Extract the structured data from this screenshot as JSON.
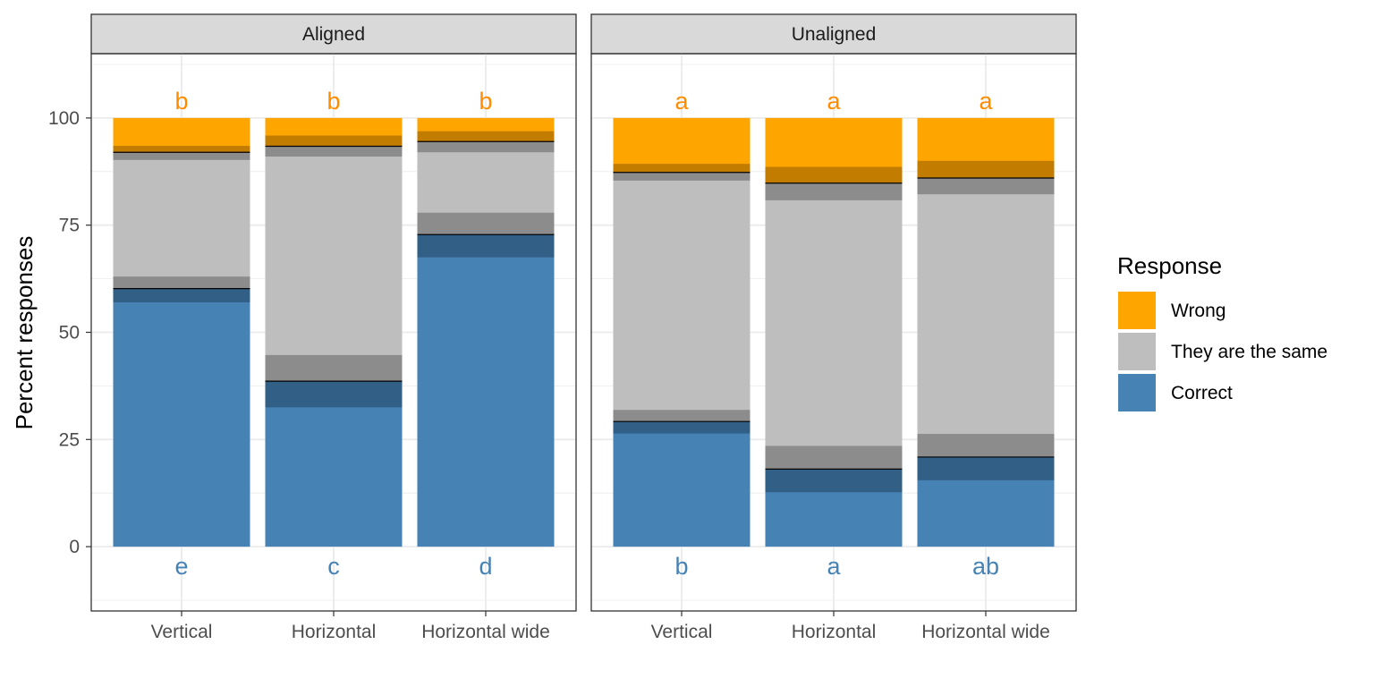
{
  "chart_data": {
    "type": "bar",
    "stacked": true,
    "ylabel": "Percent responses",
    "ylim": [
      -15,
      115
    ],
    "yticks": [
      0,
      25,
      50,
      75,
      100
    ],
    "categories": [
      "Vertical",
      "Horizontal",
      "Horizontal wide"
    ],
    "legend": {
      "title": "Response",
      "position": "right",
      "items": [
        {
          "label": "Wrong",
          "color": "#FFA500"
        },
        {
          "label": "They are the same",
          "color": "#BEBEBE"
        },
        {
          "label": "Correct",
          "color": "#4682B4"
        }
      ]
    },
    "colors": {
      "correct": "#4682B4",
      "correct_ci": "#325F86",
      "same": "#BEBEBE",
      "same_ci": "#8C8C8C",
      "wrong": "#FFA500",
      "wrong_ci": "#C27D00",
      "top_letter": "#FF8C00",
      "bottom_letter": "#4682B4"
    },
    "panels": [
      {
        "name": "Aligned",
        "bars": [
          {
            "category": "Vertical",
            "correct": 60.2,
            "same": 31.8,
            "wrong": 8.0,
            "correct_band": [
              57.0,
              63.0
            ],
            "same_band": [
              90.2,
              93.5
            ],
            "top_letter": "b",
            "bottom_letter": "e"
          },
          {
            "category": "Horizontal",
            "correct": 38.6,
            "same": 54.8,
            "wrong": 6.6,
            "correct_band": [
              32.5,
              44.7
            ],
            "same_band": [
              91.0,
              95.9
            ],
            "top_letter": "b",
            "bottom_letter": "c"
          },
          {
            "category": "Horizontal wide",
            "correct": 72.8,
            "same": 21.7,
            "wrong": 5.5,
            "correct_band": [
              67.5,
              77.9
            ],
            "same_band": [
              92.0,
              96.9
            ],
            "top_letter": "b",
            "bottom_letter": "d"
          }
        ]
      },
      {
        "name": "Unaligned",
        "bars": [
          {
            "category": "Vertical",
            "correct": 29.2,
            "same": 58.1,
            "wrong": 12.7,
            "correct_band": [
              26.4,
              31.9
            ],
            "same_band": [
              85.4,
              89.3
            ],
            "top_letter": "a",
            "bottom_letter": "b"
          },
          {
            "category": "Horizontal",
            "correct": 18.1,
            "same": 66.7,
            "wrong": 15.2,
            "correct_band": [
              12.7,
              23.5
            ],
            "same_band": [
              80.8,
              88.6
            ],
            "top_letter": "a",
            "bottom_letter": "a"
          },
          {
            "category": "Horizontal wide",
            "correct": 20.9,
            "same": 65.1,
            "wrong": 14.0,
            "correct_band": [
              15.5,
              26.3
            ],
            "same_band": [
              82.2,
              90.0
            ],
            "top_letter": "a",
            "bottom_letter": "ab"
          }
        ]
      }
    ]
  }
}
